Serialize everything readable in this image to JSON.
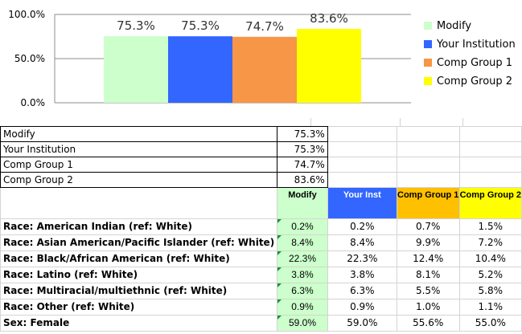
{
  "chart_data": {
    "type": "bar",
    "categories": [
      "Modify",
      "Your Institution",
      "Comp Group 1",
      "Comp Group 2"
    ],
    "values": [
      75.3,
      75.3,
      74.7,
      83.6
    ],
    "value_labels": [
      "75.3%",
      "75.3%",
      "74.7%",
      "83.6%"
    ],
    "colors": [
      "#ccffcc",
      "#3366ff",
      "#f79646",
      "#ffff00"
    ],
    "yticks": [
      "100.0%",
      "50.0%",
      "0.0%"
    ],
    "ylim": [
      0,
      100
    ],
    "legend": [
      "Modify",
      "Your Institution",
      "Comp Group 1",
      "Comp Group 2"
    ],
    "legend_position": "right"
  },
  "summary_rows": [
    {
      "label": "Modify",
      "value": "75.3%"
    },
    {
      "label": "Your Institution",
      "value": "75.3%"
    },
    {
      "label": "Comp Group 1",
      "value": "74.7%"
    },
    {
      "label": "Comp Group 2",
      "value": "83.6%"
    }
  ],
  "headers": {
    "modify": "Modify",
    "your_inst": "Your Inst",
    "comp1": "Comp Group 1",
    "comp2": "Comp Group 2"
  },
  "rows": [
    {
      "label": "Race: American Indian (ref: White)",
      "modify": "0.2%",
      "inst": "0.2%",
      "cg1": "0.7%",
      "cg2": "1.5%"
    },
    {
      "label": "Race: Asian American/Pacific Islander (ref: White)",
      "modify": "8.4%",
      "inst": "8.4%",
      "cg1": "9.9%",
      "cg2": "7.2%"
    },
    {
      "label": "Race: Black/African American (ref: White)",
      "modify": "22.3%",
      "inst": "22.3%",
      "cg1": "12.4%",
      "cg2": "10.4%"
    },
    {
      "label": "Race: Latino (ref: White)",
      "modify": "3.8%",
      "inst": "3.8%",
      "cg1": "8.1%",
      "cg2": "5.2%"
    },
    {
      "label": "Race: Multiracial/multiethnic (ref: White)",
      "modify": "6.3%",
      "inst": "6.3%",
      "cg1": "5.5%",
      "cg2": "5.8%"
    },
    {
      "label": "Race: Other (ref: White)",
      "modify": "0.9%",
      "inst": "0.9%",
      "cg1": "1.0%",
      "cg2": "1.1%"
    },
    {
      "label": "Sex: Female",
      "modify": "59.0%",
      "inst": "59.0%",
      "cg1": "55.6%",
      "cg2": "55.0%"
    }
  ]
}
